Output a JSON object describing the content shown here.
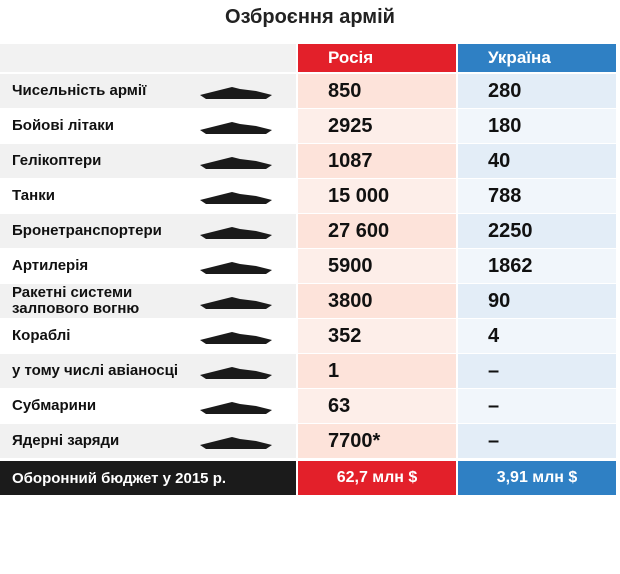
{
  "title": "Озброєння армій",
  "header": {
    "russia": "Росія",
    "ukraine": "Україна"
  },
  "rows": [
    {
      "label": "Чисельність армії",
      "russia": "850",
      "ukraine": "280"
    },
    {
      "label": "Бойові літаки",
      "russia": "2925",
      "ukraine": "180"
    },
    {
      "label": "Гелікоптери",
      "russia": "1087",
      "ukraine": "40"
    },
    {
      "label": "Танки",
      "russia": "15 000",
      "ukraine": "788"
    },
    {
      "label": "Бронетранспортери",
      "russia": "27 600",
      "ukraine": "2250"
    },
    {
      "label": "Артилерія",
      "russia": "5900",
      "ukraine": "1862"
    },
    {
      "label": "Ракетні системи залпового вогню",
      "russia": "3800",
      "ukraine": "90"
    },
    {
      "label": "Кораблі",
      "russia": "352",
      "ukraine": "4"
    },
    {
      "label": "у тому числі авіаносці",
      "russia": "1",
      "ukraine": "–"
    },
    {
      "label": "Субмарини",
      "russia": "63",
      "ukraine": "–"
    },
    {
      "label": "Ядерні заряди",
      "russia": "7700*",
      "ukraine": "–"
    }
  ],
  "footer": {
    "label": "Оборонний бюджет у 2015 р.",
    "russia": "62,7 млн $",
    "ukraine": "3,91 млн $"
  }
}
